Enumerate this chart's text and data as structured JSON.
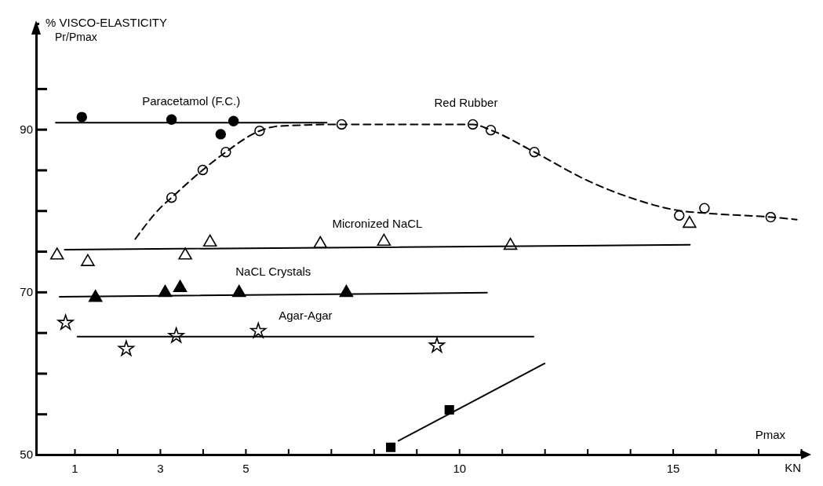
{
  "chart_data": {
    "type": "scatter",
    "ylabel": "% VISCO-ELASTICITY\nPr/Pmax",
    "xlabel": "Pmax\nKN",
    "xlim": [
      0.1,
      18
    ],
    "xticks": [
      {
        "value": 1,
        "label": "1"
      },
      {
        "value": 2,
        "label": null
      },
      {
        "value": 3,
        "label": "3"
      },
      {
        "value": 4,
        "label": null
      },
      {
        "value": 5,
        "label": "5"
      },
      {
        "value": 6,
        "label": null
      },
      {
        "value": 7,
        "label": null
      },
      {
        "value": 8,
        "label": null
      },
      {
        "value": 9,
        "label": null
      },
      {
        "value": 10,
        "label": "10"
      },
      {
        "value": 11,
        "label": null
      },
      {
        "value": 12,
        "label": null
      },
      {
        "value": 13,
        "label": null
      },
      {
        "value": 14,
        "label": null
      },
      {
        "value": 15,
        "label": "15"
      },
      {
        "value": 16,
        "label": null
      },
      {
        "value": 17,
        "label": null
      },
      {
        "value": 18,
        "label": null
      }
    ],
    "ylim": [
      50,
      103
    ],
    "yticks": [
      50,
      {
        "value": 55,
        "label": null
      },
      {
        "value": 60,
        "label": null
      },
      {
        "value": 65,
        "label": null
      },
      70,
      {
        "value": 75,
        "label": null
      },
      {
        "value": 80,
        "label": null
      },
      {
        "value": 85,
        "label": null
      },
      90,
      {
        "value": 95,
        "label": null
      }
    ],
    "grid": false,
    "legend": false,
    "series": [
      {
        "marker": "circle",
        "color": "#000000",
        "x": [
          1.17,
          3.27,
          4.42,
          4.72
        ],
        "values": [
          91.5,
          91.2,
          89.4,
          91.0
        ]
      },
      {
        "type": "line",
        "name": "Paracetamol (F.C.)",
        "color": "#000000",
        "line_style": "solid",
        "x": [
          0.56,
          6.9
        ],
        "values": [
          90.8,
          90.8
        ]
      },
      {
        "marker": "circle",
        "color": "#ffffff",
        "x": [
          3.27,
          4.0,
          4.54,
          5.33,
          7.25,
          10.32,
          10.74,
          11.76,
          15.15,
          15.74,
          17.29
        ],
        "values": [
          81.6,
          85.0,
          87.2,
          89.8,
          90.6,
          90.6,
          89.9,
          87.2,
          79.4,
          80.3,
          79.2
        ]
      },
      {
        "type": "line",
        "name": "Red Rubber",
        "color": "#000000",
        "line_style": "dashed",
        "x": [
          2.42,
          3.0,
          3.27,
          4.0,
          4.54,
          5.33,
          5.8,
          7.25,
          10.32,
          10.74,
          11.76,
          13,
          14,
          15.15,
          15.74,
          17.29,
          17.9
        ],
        "values": [
          76.5,
          80.3,
          81.6,
          85.0,
          87.2,
          89.8,
          90.4,
          90.6,
          90.6,
          89.9,
          87.2,
          83.7,
          81.6,
          80.0,
          79.7,
          79.2,
          78.9
        ]
      },
      {
        "marker": "triangle",
        "color": "#ffffff",
        "x": [
          0.59,
          1.31,
          3.59,
          4.17,
          6.75,
          8.24,
          11.2,
          15.39
        ],
        "values": [
          74.5,
          73.7,
          74.5,
          76.1,
          75.9,
          76.2,
          75.7,
          78.4
        ]
      },
      {
        "type": "line",
        "name": "Micronized NaCL",
        "color": "#000000",
        "line_style": "solid",
        "x": [
          0.77,
          15.4
        ],
        "values": [
          75.2,
          75.8
        ]
      },
      {
        "marker": "triangle",
        "color": "#000000",
        "x": [
          1.49,
          3.12,
          3.47,
          4.85,
          7.36
        ],
        "values": [
          69.3,
          69.9,
          70.5,
          69.9,
          69.9
        ]
      },
      {
        "type": "line",
        "name": "NaCL Crystals",
        "color": "#000000",
        "line_style": "solid",
        "x": [
          0.65,
          10.65
        ],
        "values": [
          69.4,
          69.9
        ]
      },
      {
        "marker": "star",
        "color": "#ffffff",
        "x": [
          0.79,
          2.21,
          3.38,
          5.3,
          9.48
        ],
        "values": [
          66.2,
          63.0,
          64.6,
          65.2,
          63.4
        ]
      },
      {
        "type": "line",
        "name": "Agar-Agar",
        "color": "#000000",
        "line_style": "solid",
        "x": [
          1.07,
          11.74
        ],
        "values": [
          64.5,
          64.5
        ]
      },
      {
        "marker": "square",
        "color": "#000000",
        "x": [
          8.4,
          9.77
        ],
        "values": [
          50.9,
          55.5
        ]
      },
      {
        "type": "line",
        "color": "#000000",
        "line_style": "solid",
        "x": [
          8.58,
          12.0
        ],
        "values": [
          51.7,
          61.2
        ]
      }
    ]
  }
}
